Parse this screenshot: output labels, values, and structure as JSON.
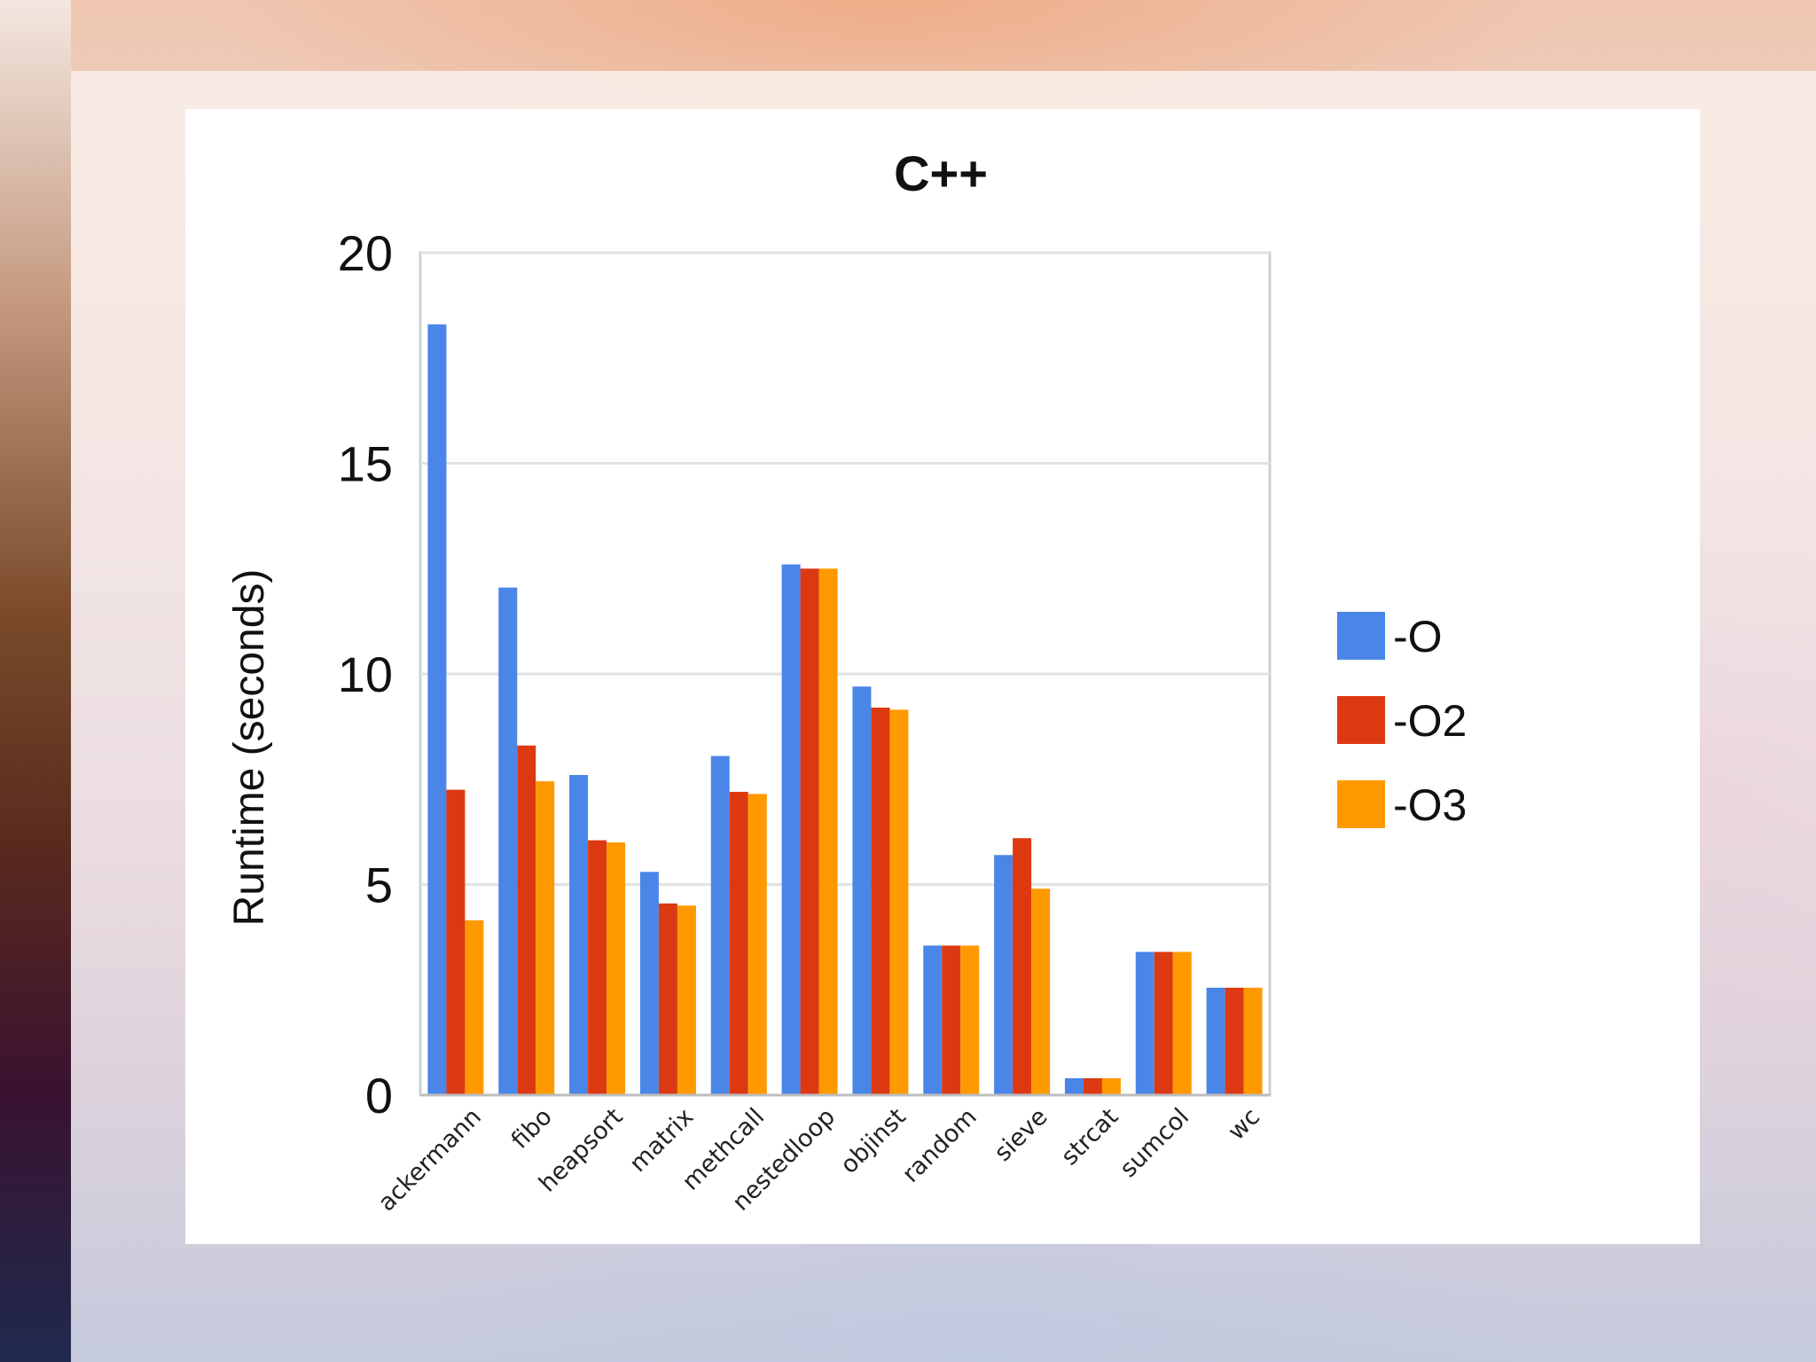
{
  "chart_data": {
    "type": "bar",
    "title": "C++",
    "xlabel": "",
    "ylabel": "Runtime (seconds)",
    "ylim": [
      0,
      20
    ],
    "yticks": [
      "0",
      "5",
      "10",
      "15",
      "20"
    ],
    "grid": true,
    "legend_position": "right",
    "categories": [
      "ackermann",
      "fibo",
      "heapsort",
      "matrix",
      "methcall",
      "nestedloop",
      "objinst",
      "random",
      "sieve",
      "strcat",
      "sumcol",
      "wc"
    ],
    "series": [
      {
        "name": "-O",
        "color": "#4a86e8",
        "values": [
          18.3,
          12.05,
          7.6,
          5.3,
          8.05,
          12.6,
          9.7,
          3.55,
          5.7,
          0.4,
          3.4,
          2.55
        ]
      },
      {
        "name": "-O2",
        "color": "#dc3912",
        "values": [
          7.25,
          8.3,
          6.05,
          4.55,
          7.2,
          12.5,
          9.2,
          3.55,
          6.1,
          0.4,
          3.4,
          2.55
        ]
      },
      {
        "name": "-O3",
        "color": "#ff9900",
        "values": [
          4.15,
          7.45,
          6.0,
          4.5,
          7.15,
          12.5,
          9.15,
          3.55,
          4.9,
          0.4,
          3.4,
          2.55
        ]
      }
    ]
  }
}
